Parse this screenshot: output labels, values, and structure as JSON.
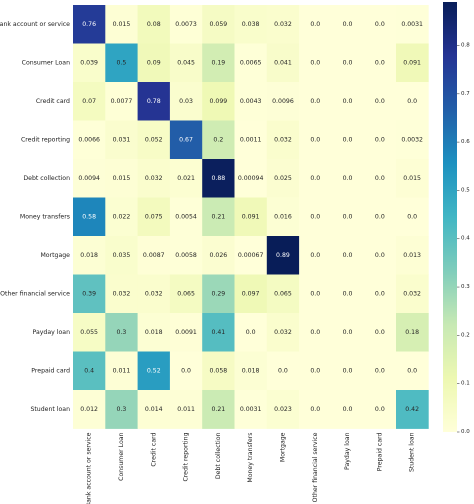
{
  "chart_data": {
    "type": "heatmap",
    "title": "",
    "xlabel": "",
    "ylabel": "",
    "rows": [
      "Bank account or service",
      "Consumer Loan",
      "Credit card",
      "Credit reporting",
      "Debt collection",
      "Money transfers",
      "Mortgage",
      "Other financial service",
      "Payday loan",
      "Prepaid card",
      "Student loan"
    ],
    "columns": [
      "Bank account or service",
      "Consumer Loan",
      "Credit card",
      "Credit reporting",
      "Debt collection",
      "Money transfers",
      "Mortgage",
      "Other financial service",
      "Payday loan",
      "Prepaid card",
      "Student loan"
    ],
    "values": [
      [
        "0.76",
        "0.015",
        "0.08",
        "0.0073",
        "0.059",
        "0.038",
        "0.032",
        "0.0",
        "0.0",
        "0.0",
        "0.0031"
      ],
      [
        "0.039",
        "0.5",
        "0.09",
        "0.045",
        "0.19",
        "0.0065",
        "0.041",
        "0.0",
        "0.0",
        "0.0",
        "0.091"
      ],
      [
        "0.07",
        "0.0077",
        "0.78",
        "0.03",
        "0.099",
        "0.0043",
        "0.0096",
        "0.0",
        "0.0",
        "0.0",
        "0.0"
      ],
      [
        "0.0066",
        "0.031",
        "0.052",
        "0.67",
        "0.2",
        "0.0011",
        "0.032",
        "0.0",
        "0.0",
        "0.0",
        "0.0032"
      ],
      [
        "0.0094",
        "0.015",
        "0.032",
        "0.021",
        "0.88",
        "0.00094",
        "0.025",
        "0.0",
        "0.0",
        "0.0",
        "0.015"
      ],
      [
        "0.58",
        "0.022",
        "0.075",
        "0.0054",
        "0.21",
        "0.091",
        "0.016",
        "0.0",
        "0.0",
        "0.0",
        "0.0"
      ],
      [
        "0.018",
        "0.035",
        "0.0087",
        "0.0058",
        "0.026",
        "0.00067",
        "0.89",
        "0.0",
        "0.0",
        "0.0",
        "0.013"
      ],
      [
        "0.39",
        "0.032",
        "0.032",
        "0.065",
        "0.29",
        "0.097",
        "0.065",
        "0.0",
        "0.0",
        "0.0",
        "0.032"
      ],
      [
        "0.055",
        "0.3",
        "0.018",
        "0.0091",
        "0.41",
        "0.0",
        "0.032",
        "0.0",
        "0.0",
        "0.0",
        "0.18"
      ],
      [
        "0.4",
        "0.011",
        "0.52",
        "0.0",
        "0.058",
        "0.018",
        "0.0",
        "0.0",
        "0.0",
        "0.0",
        "0.0"
      ],
      [
        "0.012",
        "0.3",
        "0.014",
        "0.011",
        "0.21",
        "0.0031",
        "0.023",
        "0.0",
        "0.0",
        "0.0",
        "0.42"
      ]
    ],
    "colorbar": {
      "colormap": "YlGnBu",
      "range": [
        0.0,
        0.89
      ],
      "ticks": [
        "0.0",
        "0.1",
        "0.2",
        "0.3",
        "0.4",
        "0.5",
        "0.6",
        "0.7",
        "0.8"
      ]
    },
    "grid": false,
    "legend": "colorbar-right"
  }
}
